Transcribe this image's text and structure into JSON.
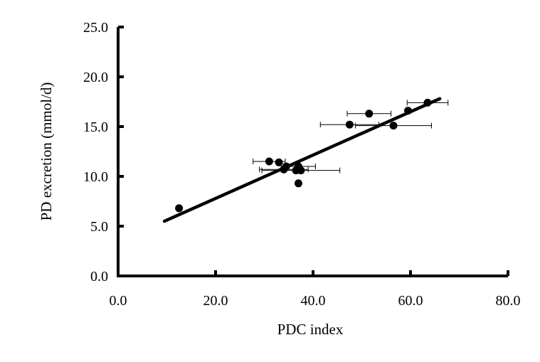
{
  "chart_data": {
    "type": "scatter",
    "title": "",
    "xlabel": "PDC index",
    "ylabel": "PD excretion (mmol/d)",
    "xlim": [
      0,
      80
    ],
    "ylim": [
      0,
      25
    ],
    "x_ticks": [
      "0.0",
      "20.0",
      "40.0",
      "60.0",
      "80.0"
    ],
    "y_ticks": [
      "0.0",
      "5.0",
      "10.0",
      "15.0",
      "20.0",
      "25.0"
    ],
    "grid": false,
    "legend": "none",
    "points": [
      {
        "x": 12.5,
        "y": 6.8,
        "xerr": 0
      },
      {
        "x": 31.0,
        "y": 11.5,
        "xerr": 3.3
      },
      {
        "x": 33.0,
        "y": 11.4,
        "xerr": 0
      },
      {
        "x": 34.0,
        "y": 10.7,
        "xerr": 5.0
      },
      {
        "x": 34.5,
        "y": 11.0,
        "xerr": 0
      },
      {
        "x": 36.5,
        "y": 10.6,
        "xerr": 0
      },
      {
        "x": 37.0,
        "y": 11.0,
        "xerr": 3.5
      },
      {
        "x": 37.0,
        "y": 9.3,
        "xerr": 0
      },
      {
        "x": 37.5,
        "y": 10.6,
        "xerr": 8.0
      },
      {
        "x": 47.5,
        "y": 15.2,
        "xerr": 6.0
      },
      {
        "x": 51.5,
        "y": 16.3,
        "xerr": 4.5
      },
      {
        "x": 56.5,
        "y": 15.1,
        "xerr": 7.8
      },
      {
        "x": 59.5,
        "y": 16.6,
        "xerr": 0
      },
      {
        "x": 63.5,
        "y": 17.4,
        "xerr": 4.2
      }
    ],
    "trendline": {
      "x": [
        9.5,
        66.0
      ],
      "y": [
        5.5,
        17.8
      ]
    },
    "colors": {
      "marker": "#000000",
      "line": "#000000",
      "axis": "#000000"
    }
  }
}
